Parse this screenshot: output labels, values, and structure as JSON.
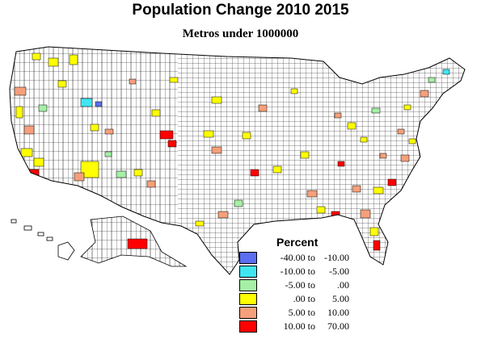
{
  "title": "Population Change 2010 2015",
  "subtitle": "Metros under 1000000",
  "legend": {
    "title": "Percent",
    "items": [
      {
        "low": "-40.00 to",
        "high": "-10.00",
        "color": "#5b6ef0"
      },
      {
        "low": "-10.00 to",
        "high": "-5.00",
        "color": "#3fe6f2"
      },
      {
        "low": "-5.00 to",
        "high": ".00",
        "color": "#a6f0a6"
      },
      {
        "low": ".00 to",
        "high": "5.00",
        "color": "#ffff00"
      },
      {
        "low": "5.00 to",
        "high": "10.00",
        "color": "#f5a07a"
      },
      {
        "low": "10.00 to",
        "high": "70.00",
        "color": "#ff0000"
      }
    ]
  },
  "colors": {
    "county_fill": "#ffffff",
    "county_border": "#000000"
  }
}
